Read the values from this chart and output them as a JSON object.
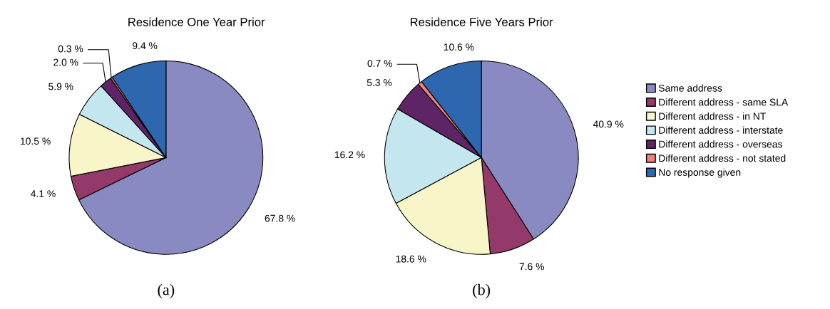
{
  "chart_data": [
    {
      "type": "pie",
      "title": "Residence One Year Prior",
      "categories": [
        null,
        null,
        null,
        null,
        null,
        null,
        null
      ],
      "values": [
        67.8,
        4.1,
        10.5,
        5.9,
        2.0,
        0.3,
        9.4
      ],
      "value_labels": [
        "67.8 %",
        "4.1 %",
        "10.5 %",
        "5.9 %",
        "2.0 %",
        "0.3 %",
        "9.4 %"
      ],
      "colors": [
        "#8a8ac2",
        "#933a6b",
        "#f8f6c8",
        "#c4e6ee",
        "#5e2466",
        "#f0807a",
        "#2c67b0"
      ],
      "legend": false,
      "annotations": [
        "(a)"
      ]
    },
    {
      "type": "pie",
      "title": "Residence Five Years Prior",
      "categories": [
        "Same address",
        "Different address - same SLA",
        "Different address - in NT",
        "Different address - interstate",
        "Different address - overseas",
        "Different address - not stated",
        "No response given"
      ],
      "values": [
        40.9,
        7.6,
        18.6,
        16.2,
        5.3,
        0.7,
        10.6
      ],
      "value_labels": [
        "40.9 %",
        "7.6 %",
        "18.6 %",
        "16.2 %",
        "5.3 %",
        "0.7 %",
        "10.6 %"
      ],
      "colors": [
        "#8a8ac2",
        "#933a6b",
        "#f8f6c8",
        "#c4e6ee",
        "#5e2466",
        "#f0807a",
        "#2c67b0"
      ],
      "legend": "right",
      "annotations": [
        "(b)"
      ]
    }
  ]
}
